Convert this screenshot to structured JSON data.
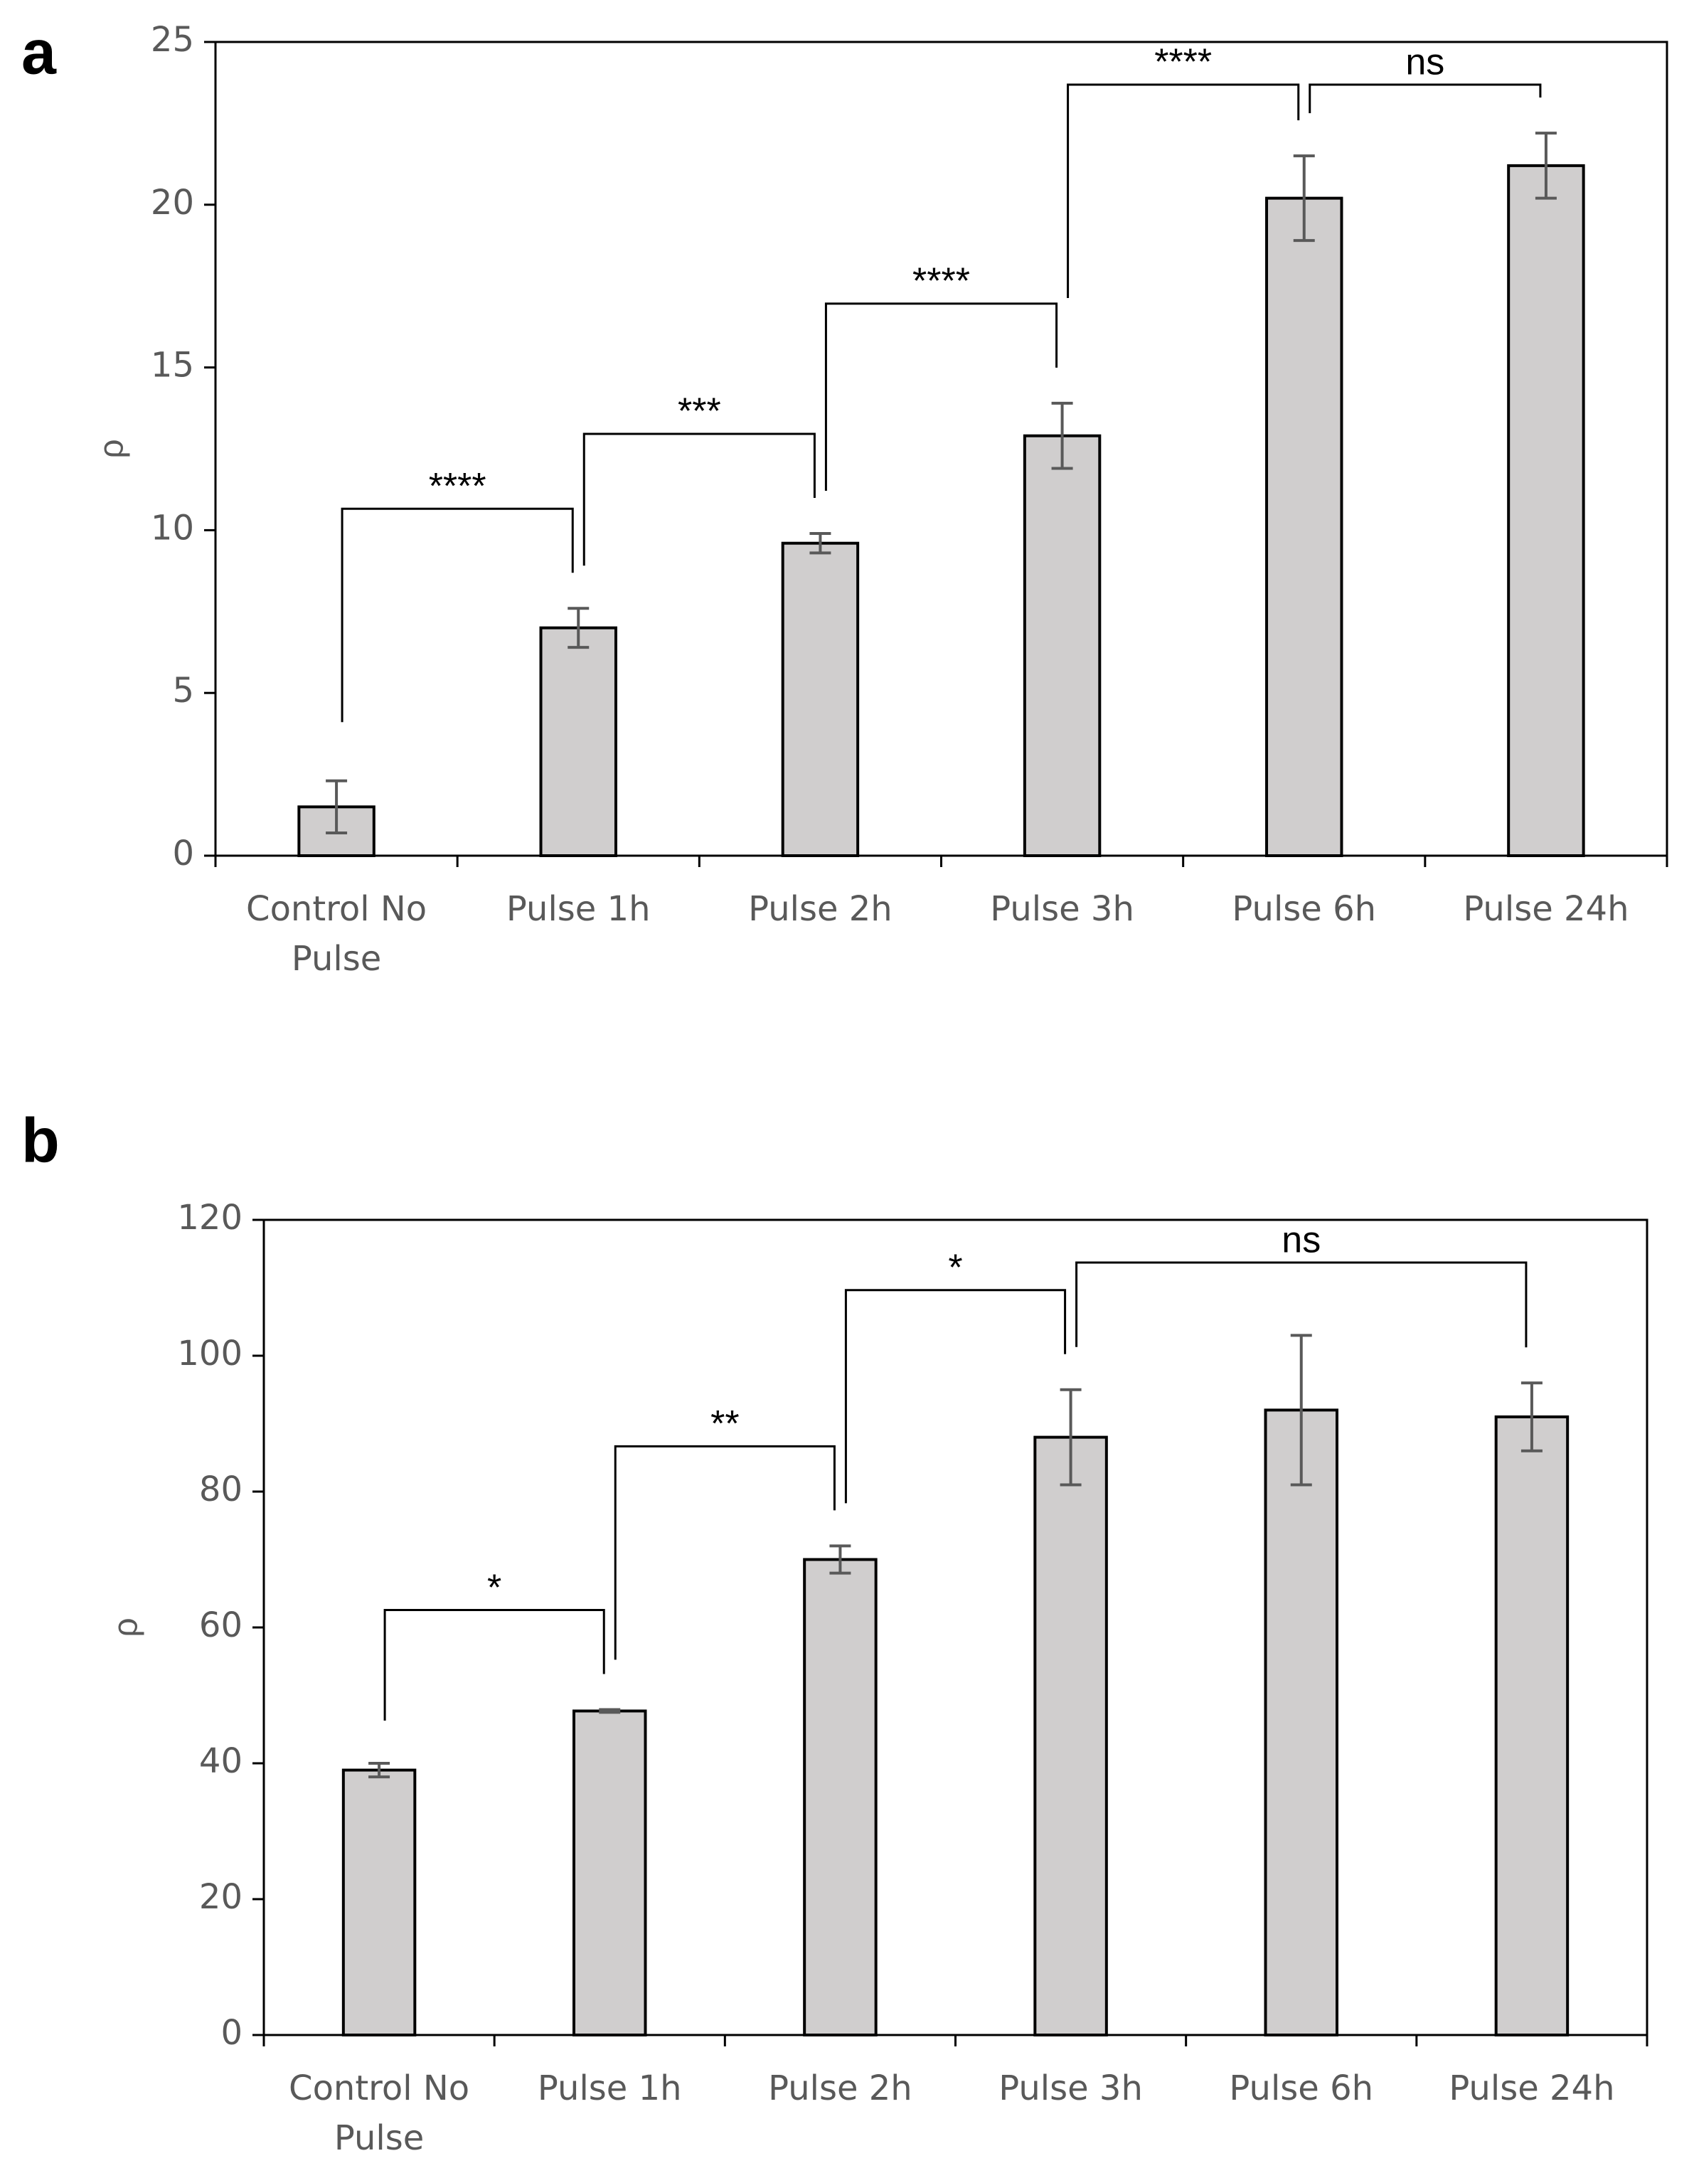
{
  "chart_data": [
    {
      "type": "bar",
      "panel_label": "a",
      "y_label": "ρ",
      "categories": [
        "Control No Pulse",
        "Pulse 1h",
        "Pulse 2h",
        "Pulse 3h",
        "Pulse 6h",
        "Pulse 24h"
      ],
      "values": [
        1.5,
        7.0,
        9.6,
        12.9,
        20.2,
        21.2
      ],
      "errors": [
        0.8,
        0.6,
        0.3,
        1.0,
        1.3,
        1.0
      ],
      "color": "#d0cece",
      "ylim": [
        0,
        25
      ],
      "yticks": [
        0,
        5,
        10,
        15,
        20,
        25
      ],
      "comparisons": [
        {
          "pair": [
            0,
            1
          ],
          "label": "****"
        },
        {
          "pair": [
            1,
            2
          ],
          "label": "***"
        },
        {
          "pair": [
            2,
            3
          ],
          "label": "****"
        },
        {
          "pair": [
            3,
            4
          ],
          "label": "****"
        },
        {
          "pair": [
            4,
            5
          ],
          "label": "ns"
        }
      ]
    },
    {
      "type": "bar",
      "panel_label": "b",
      "y_label": "ρ",
      "categories": [
        "Control No Pulse",
        "Pulse 1h",
        "Pulse 2h",
        "Pulse 3h",
        "Pulse 6h",
        "Pulse 24h"
      ],
      "values": [
        39,
        47.7,
        70,
        88,
        92,
        91
      ],
      "errors": [
        1,
        0.2,
        2,
        7,
        11,
        5
      ],
      "color": "#d0cece",
      "ylim": [
        0,
        120
      ],
      "yticks": [
        0,
        20,
        40,
        60,
        80,
        100,
        120
      ],
      "comparisons": [
        {
          "pair": [
            0,
            1
          ],
          "label": "*"
        },
        {
          "pair": [
            1,
            2
          ],
          "label": "**"
        },
        {
          "pair": [
            2,
            3
          ],
          "label": "*"
        },
        {
          "pair": [
            3,
            5
          ],
          "label": "ns"
        }
      ]
    }
  ]
}
